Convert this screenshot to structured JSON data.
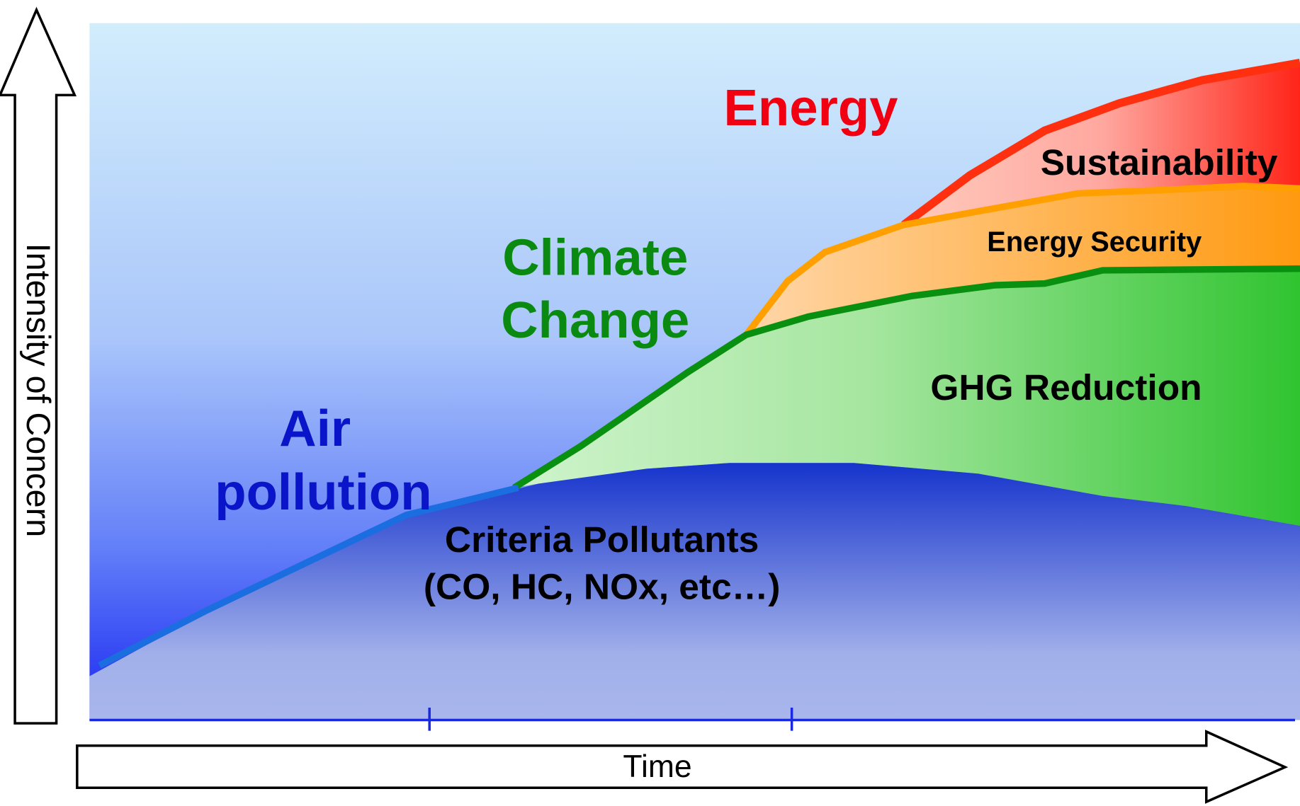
{
  "axes": {
    "y_label": "Intensity of Concern",
    "x_label": "Time"
  },
  "themes": {
    "energy": "Energy",
    "climate_change": [
      "Climate",
      "Change"
    ],
    "air_pollution": [
      "Air",
      "pollution"
    ]
  },
  "areas": {
    "sustainability": "Sustainability",
    "energy_security": "Energy Security",
    "ghg_reduction": "GHG Reduction",
    "criteria_pollutants": [
      "Criteria Pollutants",
      "(CO, HC, NOx, etc…)"
    ]
  }
}
